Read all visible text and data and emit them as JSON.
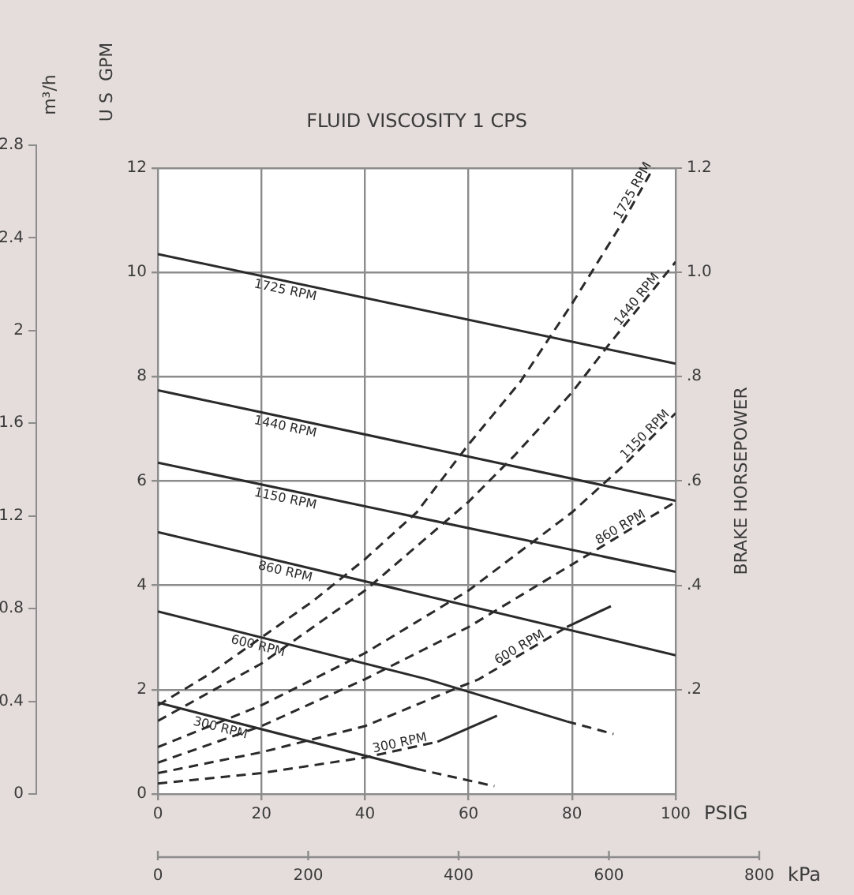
{
  "chart_data": {
    "type": "line",
    "title": "FLUID VISCOSITY 1 CPS",
    "xlabel": "PSIG",
    "x2label": "kPa",
    "ylabel": "U S  GPM",
    "y2label": "BRAKE HORSEPOWER",
    "y3label": "m³/h",
    "xlim": [
      0,
      100
    ],
    "xticks": [
      0,
      20,
      40,
      60,
      80,
      100
    ],
    "x2lim": [
      0,
      800
    ],
    "x2ticks": [
      0,
      200,
      400,
      600,
      800
    ],
    "ylim": [
      0,
      12
    ],
    "yticks": [
      0,
      2,
      4,
      6,
      8,
      10,
      12
    ],
    "y2lim": [
      0,
      1.2
    ],
    "y2ticks": [
      {
        "value": 0.2,
        "label": ".2"
      },
      {
        "value": 0.4,
        "label": ".4"
      },
      {
        "value": 0.6,
        "label": ".6"
      },
      {
        "value": 0.8,
        "label": ".8"
      },
      {
        "value": 1,
        "label": "1.0"
      },
      1.2
    ],
    "y3lim": [
      0,
      2.8
    ],
    "y3ticks": [
      0,
      0.4,
      0.8,
      1.2,
      1.6,
      2,
      2.4,
      2.8
    ],
    "grid": true,
    "legend": false,
    "marker": "none",
    "series": [
      {
        "name": "1725 RPM",
        "color": "#2a2a2a",
        "line_style": "solid",
        "x": [
          0,
          100
        ],
        "values": [
          10.35,
          8.25
        ]
      },
      {
        "name": "1440 RPM",
        "color": "#2a2a2a",
        "line_style": "solid",
        "x": [
          0,
          100
        ],
        "values": [
          7.74,
          5.62
        ]
      },
      {
        "name": "1150 RPM",
        "color": "#2a2a2a",
        "line_style": "solid",
        "x": [
          0,
          100
        ],
        "values": [
          6.35,
          4.26
        ]
      },
      {
        "name": "860 RPM",
        "color": "#2a2a2a",
        "line_style": "solid",
        "x": [
          0,
          100
        ],
        "values": [
          5.02,
          2.66
        ]
      },
      {
        "name": "600 RPM",
        "color": "#2a2a2a",
        "line_style": "solid",
        "x": [
          0,
          52,
          79
        ],
        "values": [
          3.5,
          2.2,
          1.39
        ]
      },
      {
        "color": "#2a2a2a",
        "line_style": "dashed",
        "x": [
          79,
          88
        ],
        "values": [
          1.39,
          1.15
        ]
      },
      {
        "name": "300 RPM",
        "color": "#2a2a2a",
        "line_style": "solid",
        "x": [
          0,
          50
        ],
        "values": [
          1.75,
          0.48
        ]
      },
      {
        "color": "#2a2a2a",
        "line_style": "dashed",
        "x": [
          50,
          65
        ],
        "values": [
          0.48,
          0.15
        ]
      },
      {
        "name": "1725 RPM",
        "color": "#2a2a2a",
        "line_style": "dashed",
        "axis": "y2",
        "x": [
          0,
          10,
          20,
          30,
          40,
          50,
          60,
          70,
          80,
          90,
          95.7
        ],
        "values": [
          0.17,
          0.23,
          0.3,
          0.37,
          0.45,
          0.54,
          0.67,
          0.79,
          0.94,
          1.1,
          1.2
        ]
      },
      {
        "name": "1440 RPM",
        "color": "#2a2a2a",
        "line_style": "dashed",
        "axis": "y2",
        "x": [
          0,
          20,
          40,
          60,
          69,
          80,
          87,
          100
        ],
        "values": [
          0.14,
          0.25,
          0.39,
          0.56,
          0.65,
          0.77,
          0.86,
          1.02
        ]
      },
      {
        "name": "1150 RPM",
        "color": "#2a2a2a",
        "line_style": "dashed",
        "axis": "y2",
        "x": [
          0,
          20,
          40,
          60,
          80,
          90,
          100
        ],
        "values": [
          0.09,
          0.17,
          0.27,
          0.39,
          0.54,
          0.63,
          0.73
        ]
      },
      {
        "name": "860 RPM",
        "color": "#2a2a2a",
        "line_style": "dashed",
        "axis": "y2",
        "x": [
          0,
          20,
          40,
          50,
          60,
          80,
          100
        ],
        "values": [
          0.06,
          0.13,
          0.22,
          0.27,
          0.32,
          0.44,
          0.56
        ]
      },
      {
        "name": "600 RPM",
        "color": "#2a2a2a",
        "line_style": "dashed",
        "axis": "y2",
        "x": [
          0,
          20,
          40,
          57,
          62,
          79
        ],
        "values": [
          0.04,
          0.08,
          0.13,
          0.2,
          0.22,
          0.32
        ]
      },
      {
        "color": "#2a2a2a",
        "line_style": "solid",
        "axis": "y2",
        "x": [
          79,
          87.5
        ],
        "values": [
          0.32,
          0.36
        ]
      },
      {
        "name": "300 RPM",
        "color": "#2a2a2a",
        "line_style": "dashed",
        "axis": "y2",
        "x": [
          0,
          20,
          40,
          54
        ],
        "values": [
          0.02,
          0.04,
          0.07,
          0.1
        ]
      },
      {
        "color": "#2a2a2a",
        "line_style": "solid",
        "axis": "y2",
        "x": [
          54,
          65.5
        ],
        "values": [
          0.1,
          0.15
        ]
      }
    ]
  }
}
